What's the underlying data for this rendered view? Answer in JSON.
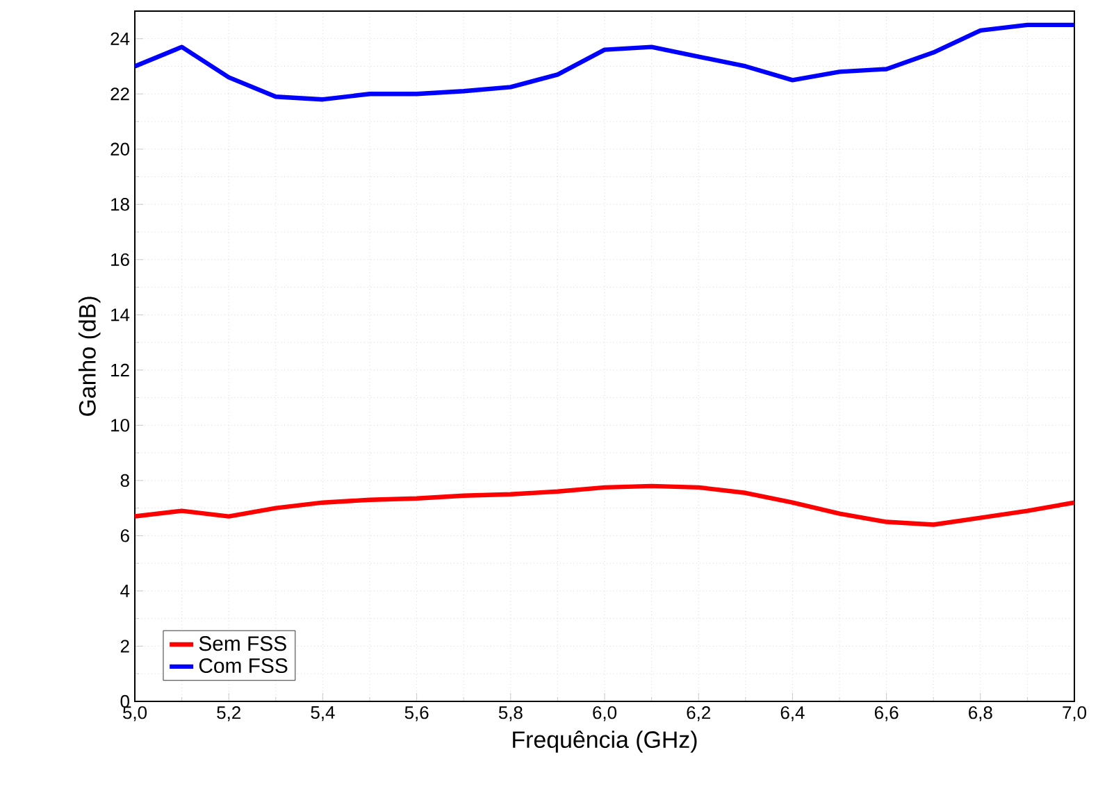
{
  "chart_data": {
    "type": "line",
    "xlabel": "Frequência (GHz)",
    "ylabel": "Ganho (dB)",
    "x": [
      5.0,
      5.1,
      5.2,
      5.3,
      5.4,
      5.5,
      5.6,
      5.7,
      5.8,
      5.9,
      6.0,
      6.1,
      6.2,
      6.3,
      6.4,
      6.5,
      6.6,
      6.7,
      6.8,
      6.9,
      7.0
    ],
    "series": [
      {
        "name": "Sem FSS",
        "color": "#ff0000",
        "values": [
          6.7,
          6.9,
          6.7,
          7.0,
          7.2,
          7.3,
          7.35,
          7.45,
          7.5,
          7.6,
          7.75,
          7.8,
          7.75,
          7.55,
          7.2,
          6.8,
          6.5,
          6.4,
          6.65,
          6.9,
          7.2
        ]
      },
      {
        "name": "Com FSS",
        "color": "#0000ff",
        "values": [
          23.0,
          23.7,
          22.6,
          21.9,
          21.8,
          22.0,
          22.0,
          22.1,
          22.25,
          22.7,
          23.6,
          23.7,
          23.35,
          23.0,
          22.5,
          22.8,
          22.9,
          23.5,
          24.3,
          24.5,
          24.5
        ]
      }
    ],
    "xlim": [
      5.0,
      7.0
    ],
    "ylim": [
      0,
      25
    ],
    "xticks": [
      {
        "value": 5.0,
        "label": "5,0"
      },
      {
        "value": 5.2,
        "label": "5,2"
      },
      {
        "value": 5.4,
        "label": "5,4"
      },
      {
        "value": 5.6,
        "label": "5,6"
      },
      {
        "value": 5.8,
        "label": "5,8"
      },
      {
        "value": 6.0,
        "label": "6,0"
      },
      {
        "value": 6.2,
        "label": "6,2"
      },
      {
        "value": 6.4,
        "label": "6,4"
      },
      {
        "value": 6.6,
        "label": "6,6"
      },
      {
        "value": 6.8,
        "label": "6,8"
      },
      {
        "value": 7.0,
        "label": "7,0"
      }
    ],
    "yticks": [
      0,
      2,
      4,
      6,
      8,
      10,
      12,
      14,
      16,
      18,
      20,
      22,
      24
    ],
    "grid": true,
    "legend": "bottom left",
    "marker": "none",
    "line_style": "solid"
  }
}
